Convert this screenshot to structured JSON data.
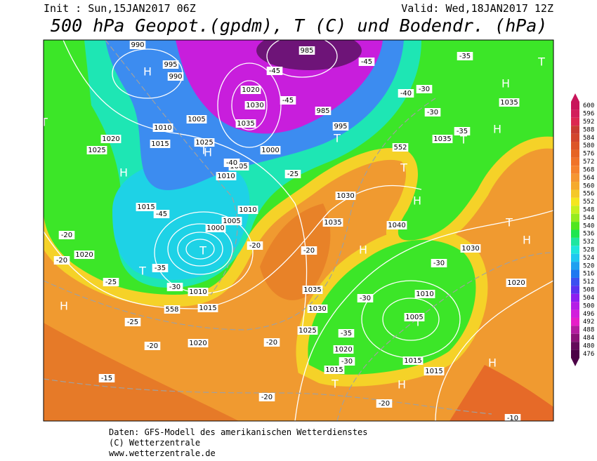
{
  "header": {
    "init": "Init : Sun,15JAN2017 06Z",
    "valid": "Valid: Wed,18JAN2017 12Z",
    "title": "500 hPa Geopot.(gpdm), T (C) und Bodendr. (hPa)"
  },
  "legend": {
    "levels": [
      600,
      596,
      592,
      588,
      584,
      580,
      576,
      572,
      568,
      564,
      560,
      556,
      552,
      548,
      544,
      540,
      536,
      532,
      528,
      524,
      520,
      516,
      512,
      508,
      504,
      500,
      496,
      492,
      488,
      484,
      480,
      476
    ],
    "colors": [
      "#c8145a",
      "#d21e5a",
      "#dc2850",
      "#c83c32",
      "#d2462d",
      "#dc5528",
      "#e66423",
      "#f07328",
      "#f5822d",
      "#f59632",
      "#f5aa2d",
      "#f5c828",
      "#f5e61e",
      "#c8f01e",
      "#96eb1e",
      "#50e61e",
      "#1ee650",
      "#1ee6a0",
      "#1ee6dc",
      "#1ec8f0",
      "#1ea0f0",
      "#1e78f0",
      "#3c50f0",
      "#5a32f0",
      "#8c1ef0",
      "#b41ee6",
      "#d21edc",
      "#e61ec8",
      "#b41ea0",
      "#8c1478",
      "#640a5a",
      "#4b0046"
    ]
  },
  "map": {
    "labels": [
      "H",
      "T",
      "H",
      "H",
      "T",
      "H",
      "T",
      "H",
      "T",
      "T",
      "H",
      "T",
      "H",
      "H",
      "T",
      "T",
      "H",
      "T",
      "T",
      "H",
      "H",
      "T",
      "1035",
      "1035",
      "1030",
      "1035",
      "1040",
      "1030",
      "1035",
      "1030",
      "1025",
      "1020",
      "1015",
      "1015",
      "1015",
      "1005",
      "1010",
      "1020",
      "1020",
      "1015",
      "1010",
      "1005",
      "1000",
      "1010",
      "1015",
      "1020",
      "1025",
      "1020",
      "1015",
      "1010",
      "1005",
      "1030",
      "1035",
      "1020",
      "990",
      "995",
      "990",
      "985",
      "985",
      "995",
      "1000",
      "1005",
      "1010",
      "1025",
      "-35",
      "-30",
      "-30",
      "-35",
      "-40",
      "-45",
      "-45",
      "-45",
      "-40",
      "-25",
      "-45",
      "-20",
      "-20",
      "-35",
      "-30",
      "-20",
      "-20",
      "-25",
      "-25",
      "-20",
      "-20",
      "-30",
      "-30",
      "-35",
      "-30",
      "-20",
      "-15",
      "-20",
      "-10",
      "552",
      "558"
    ]
  },
  "footer": {
    "line1": "Daten: GFS-Modell des amerikanischen Wetterdienstes",
    "line2": "(C) Wetterzentrale",
    "line3": "www.wetterzentrale.de"
  }
}
